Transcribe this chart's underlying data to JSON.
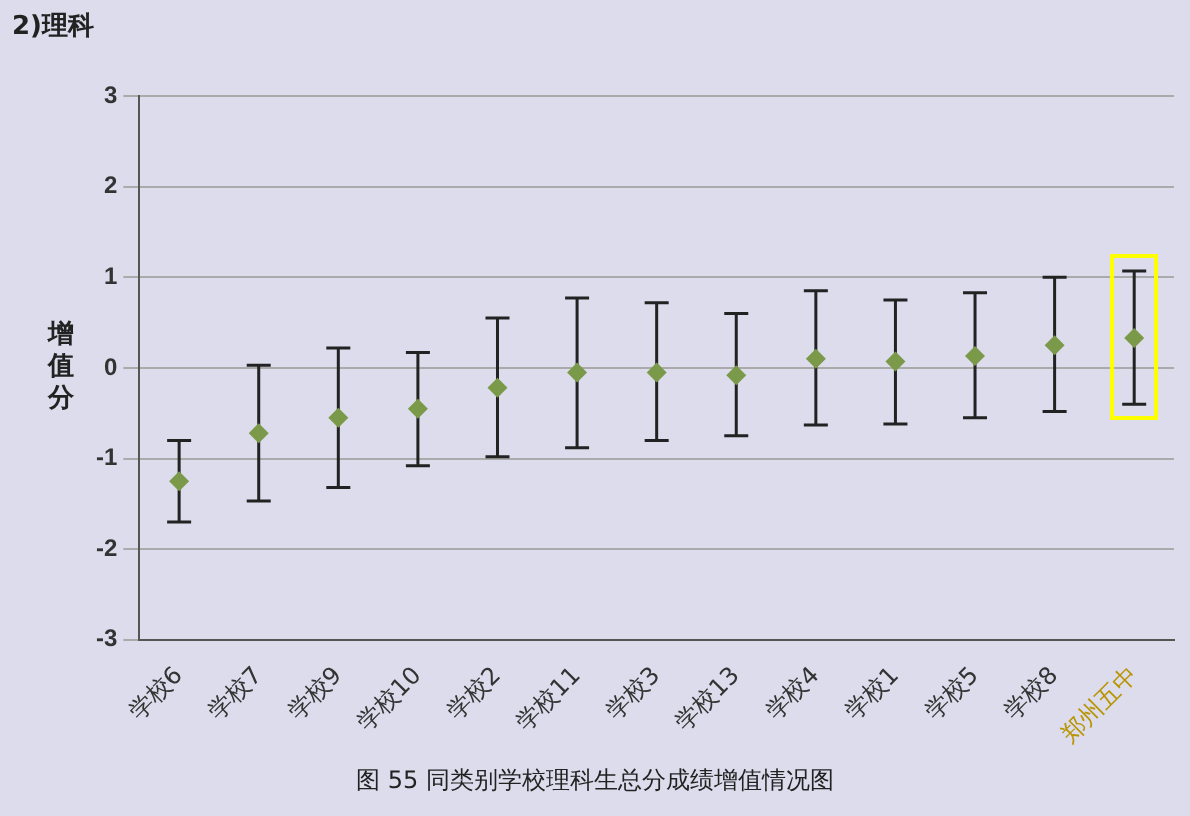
{
  "chart_data": {
    "type": "scatter",
    "title": "2)理科",
    "ylabel": "增值分",
    "categories": [
      "学校6",
      "学校7",
      "学校9",
      "学校10",
      "学校2",
      "学校11",
      "学校3",
      "学校13",
      "学校4",
      "学校1",
      "学校5",
      "学校8",
      "郑州五中"
    ],
    "values": [
      -1.25,
      -0.72,
      -0.55,
      -0.45,
      -0.22,
      -0.05,
      -0.05,
      -0.08,
      0.1,
      0.07,
      0.13,
      0.25,
      0.33
    ],
    "errors": [
      [
        -1.7,
        -0.8
      ],
      [
        -1.47,
        0.03
      ],
      [
        -1.32,
        0.22
      ],
      [
        -1.08,
        0.17
      ],
      [
        -0.98,
        0.55
      ],
      [
        -0.88,
        0.77
      ],
      [
        -0.8,
        0.72
      ],
      [
        -0.75,
        0.6
      ],
      [
        -0.63,
        0.85
      ],
      [
        -0.62,
        0.75
      ],
      [
        -0.55,
        0.83
      ],
      [
        -0.48,
        1.0
      ],
      [
        -0.4,
        1.07
      ]
    ],
    "color": "#7a9a4a",
    "marker": "diamond",
    "ylim": [
      -3,
      3
    ],
    "yticks": [
      -3,
      -2,
      -1,
      0,
      1,
      2,
      3
    ],
    "grid": "y",
    "annotations": [
      "图 55 同类别学校理科生总分成绩增值情况图"
    ]
  }
}
